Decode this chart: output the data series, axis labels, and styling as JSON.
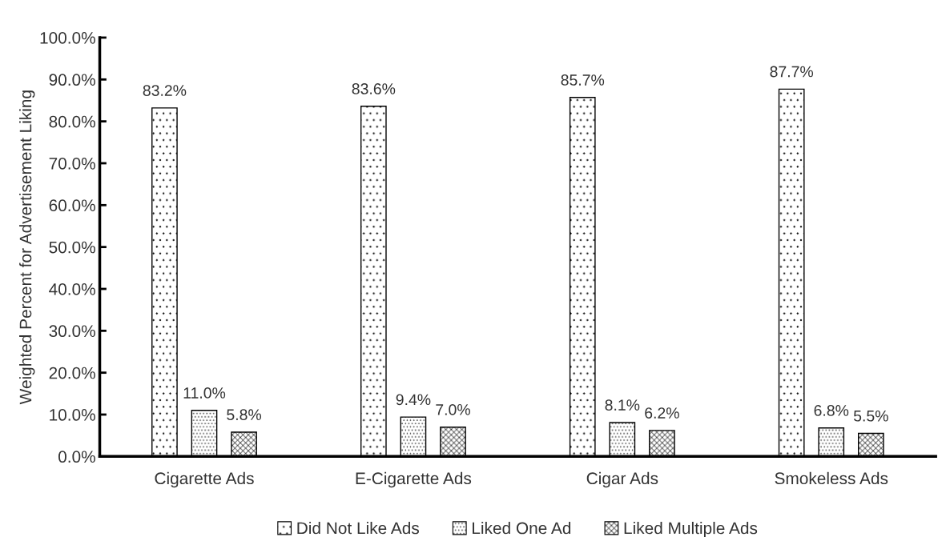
{
  "chart_data": {
    "type": "bar",
    "ylabel": "Weighted Percent for Advertisement Liking",
    "categories": [
      "Cigarette Ads",
      "E-Cigarette Ads",
      "Cigar Ads",
      "Smokeless Ads"
    ],
    "series": [
      {
        "name": "Did Not Like Ads",
        "color": "#000000",
        "values": [
          83.2,
          83.6,
          85.7,
          87.7
        ],
        "value_labels": [
          "83.2%",
          "83.6%",
          "85.7%",
          "87.7%"
        ]
      },
      {
        "name": "Liked One Ad",
        "color": "#000000",
        "values": [
          11.0,
          9.4,
          8.1,
          6.8
        ],
        "value_labels": [
          "11.0%",
          "9.4%",
          "8.1%",
          "6.8%"
        ]
      },
      {
        "name": "Liked Multiple Ads",
        "color": "#000000",
        "values": [
          5.8,
          7.0,
          6.2,
          5.5
        ],
        "value_labels": [
          "5.8%",
          "7.0%",
          "6.2%",
          "5.5%"
        ]
      }
    ],
    "ylim": [
      0,
      100
    ],
    "yticks": [
      {
        "value": 0,
        "label": "0.0%"
      },
      {
        "value": 10,
        "label": "10.0%"
      },
      {
        "value": 20,
        "label": "20.0%"
      },
      {
        "value": 30,
        "label": "30.0%"
      },
      {
        "value": 40,
        "label": "40.0%"
      },
      {
        "value": 50,
        "label": "50.0%"
      },
      {
        "value": 60,
        "label": "60.0%"
      },
      {
        "value": 70,
        "label": "70.0%"
      },
      {
        "value": 80,
        "label": "80.0%"
      },
      {
        "value": 90,
        "label": "90.0%"
      },
      {
        "value": 100,
        "label": "100.0%"
      }
    ],
    "grid": false,
    "legend": "bottom"
  }
}
